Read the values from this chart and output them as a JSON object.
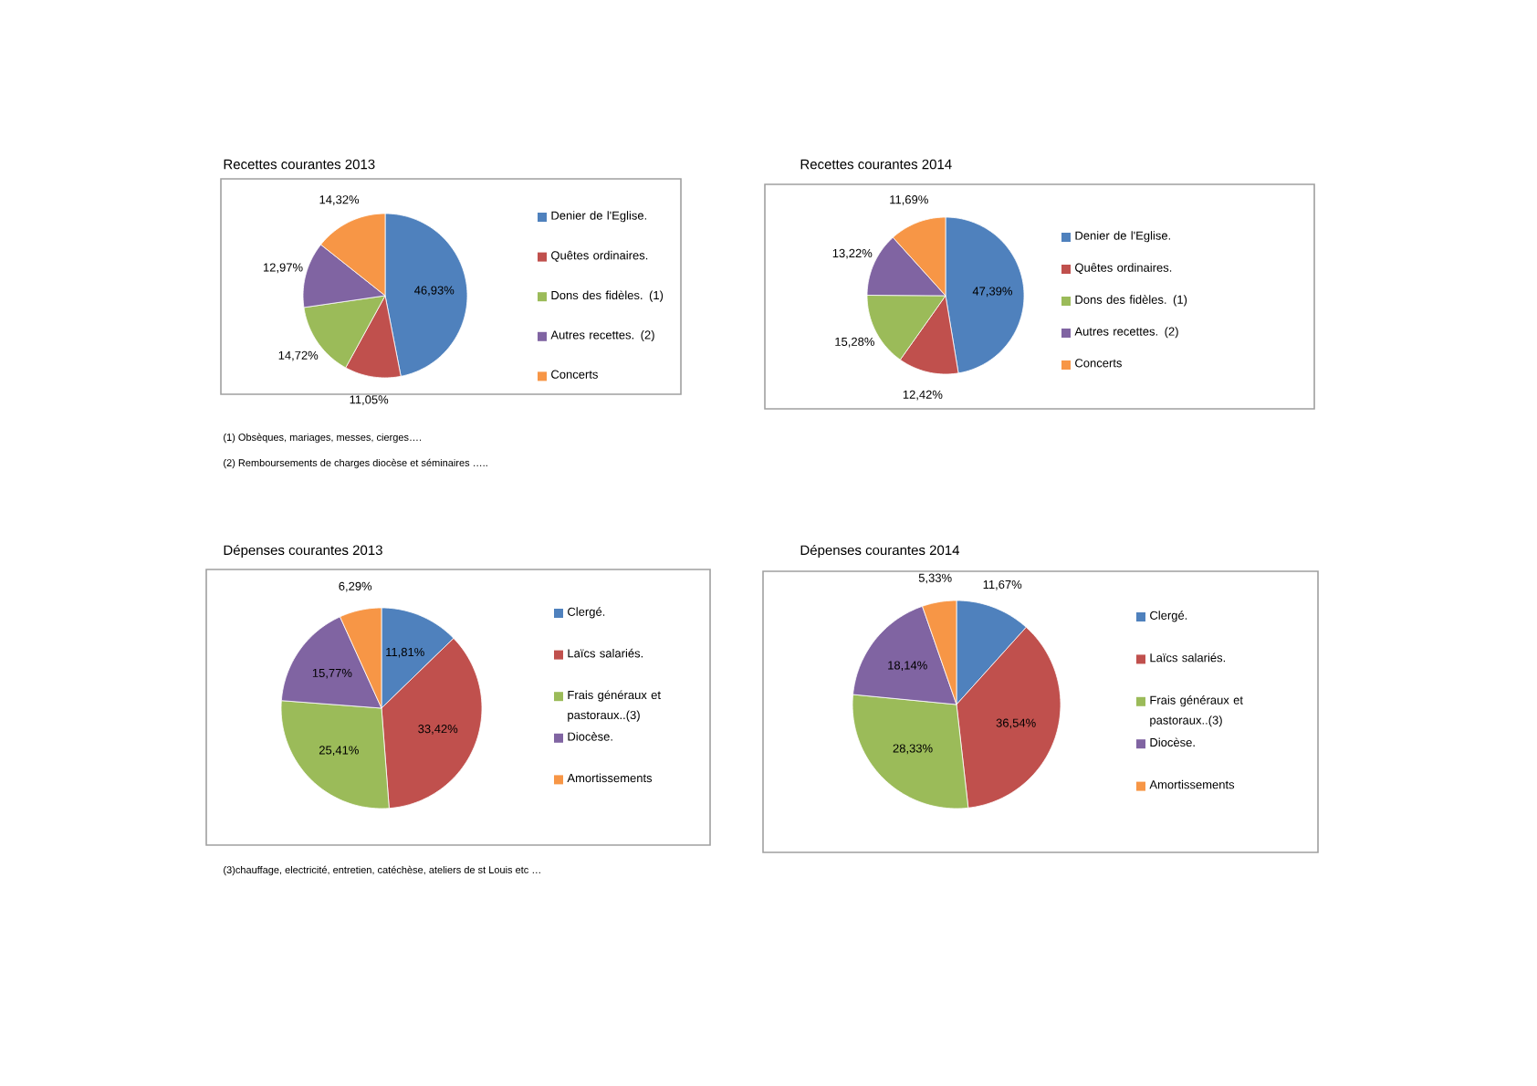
{
  "chart_data": [
    {
      "type": "pie",
      "title": "Recettes courantes 2013",
      "categories": [
        "Denier de l'Eglise.",
        "Quêtes ordinaires.",
        "Dons des fidèles. (1)",
        "Autres recettes. (2)",
        "Concerts"
      ],
      "values": [
        46.93,
        11.05,
        14.72,
        12.97,
        14.32
      ],
      "value_labels": [
        "46,93%",
        "11,05%",
        "14,72%",
        "12,97%",
        "14,32%"
      ],
      "colors": [
        "#4f81bd",
        "#c0504d",
        "#9bbb59",
        "#8064a2",
        "#f79646"
      ],
      "legend": "right",
      "annotations": [
        "(1) Obsèques, mariages, messes, cierges….",
        "(2) Remboursements de charges diocèse et séminaires ….."
      ]
    },
    {
      "type": "pie",
      "title": "Recettes courantes 2014",
      "categories": [
        "Denier de l'Eglise.",
        "Quêtes ordinaires.",
        "Dons des fidèles. (1)",
        "Autres recettes. (2)",
        "Concerts"
      ],
      "values": [
        47.39,
        12.42,
        15.28,
        13.22,
        11.69
      ],
      "value_labels": [
        "47,39%",
        "12,42%",
        "15,28%",
        "13,22%",
        "11,69%"
      ],
      "colors": [
        "#4f81bd",
        "#c0504d",
        "#9bbb59",
        "#8064a2",
        "#f79646"
      ],
      "legend": "right"
    },
    {
      "type": "pie",
      "title": "Dépenses courantes 2013",
      "categories": [
        "Clergé.",
        "Laïcs salariés.",
        "Frais généraux et pastoraux..(3)",
        "Diocèse.",
        "Amortissements"
      ],
      "values": [
        11.81,
        33.42,
        25.41,
        15.77,
        6.29
      ],
      "value_labels": [
        "11,81%",
        "33,42%",
        "25,41%",
        "15,77%",
        "6,29%"
      ],
      "colors": [
        "#4f81bd",
        "#c0504d",
        "#9bbb59",
        "#8064a2",
        "#f79646"
      ],
      "legend": "right",
      "annotations": [
        "(3)chauffage, electricité, entretien, catéchèse, ateliers de st Louis etc …"
      ]
    },
    {
      "type": "pie",
      "title": "Dépenses courantes 2014",
      "categories": [
        "Clergé.",
        "Laïcs salariés.",
        "Frais généraux et pastoraux..(3)",
        "Diocèse.",
        "Amortissements"
      ],
      "values": [
        11.67,
        36.54,
        28.33,
        18.14,
        5.33
      ],
      "value_labels": [
        "11,67%",
        "36,54%",
        "28,33%",
        "18,14%",
        "5,33%"
      ],
      "colors": [
        "#4f81bd",
        "#c0504d",
        "#9bbb59",
        "#8064a2",
        "#f79646"
      ],
      "legend": "right"
    }
  ]
}
